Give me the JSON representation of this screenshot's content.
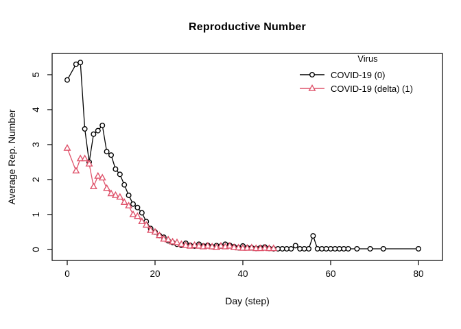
{
  "page": {
    "title": "Reproductive Number"
  },
  "colors": {
    "background": "#ffffff",
    "axis": "#000000",
    "covid_series": "#000000",
    "delta_series": "#DF536B"
  },
  "legend": {
    "title": "Virus",
    "entries": [
      {
        "label": "COVID-19 (0)",
        "marker": "circle",
        "color": "#000000"
      },
      {
        "label": "COVID-19 (delta) (1)",
        "marker": "triangle",
        "color": "#DF536B"
      }
    ]
  },
  "chart_data": {
    "type": "line",
    "title": "Reproductive Number",
    "xlabel": "Day (step)",
    "ylabel": "Average Rep. Number",
    "xlim": [
      -3.4,
      85.5
    ],
    "ylim": [
      -0.31,
      5.6
    ],
    "xticks": [
      0,
      20,
      40,
      60,
      80
    ],
    "yticks": [
      0,
      1,
      2,
      3,
      4,
      5
    ],
    "grid": false,
    "legend_position": "top-right",
    "series": [
      {
        "name": "COVID-19 (0)",
        "color": "#000000",
        "marker": "circle",
        "points": [
          [
            0,
            4.85
          ],
          [
            2,
            5.3
          ],
          [
            3,
            5.35
          ],
          [
            4,
            3.45
          ],
          [
            5,
            2.5
          ],
          [
            6,
            3.3
          ],
          [
            7,
            3.4
          ],
          [
            8,
            3.55
          ],
          [
            9,
            2.8
          ],
          [
            10,
            2.7
          ],
          [
            11,
            2.3
          ],
          [
            12,
            2.15
          ],
          [
            13,
            1.85
          ],
          [
            14,
            1.55
          ],
          [
            15,
            1.3
          ],
          [
            16,
            1.2
          ],
          [
            17,
            1.05
          ],
          [
            18,
            0.8
          ],
          [
            19,
            0.6
          ],
          [
            20,
            0.5
          ],
          [
            21,
            0.4
          ],
          [
            22,
            0.35
          ],
          [
            23,
            0.25
          ],
          [
            24,
            0.2
          ],
          [
            25,
            0.15
          ],
          [
            26,
            0.12
          ],
          [
            27,
            0.18
          ],
          [
            28,
            0.12
          ],
          [
            29,
            0.1
          ],
          [
            30,
            0.15
          ],
          [
            31,
            0.1
          ],
          [
            32,
            0.12
          ],
          [
            33,
            0.08
          ],
          [
            34,
            0.11
          ],
          [
            35,
            0.1
          ],
          [
            36,
            0.15
          ],
          [
            37,
            0.12
          ],
          [
            38,
            0.08
          ],
          [
            39,
            0.05
          ],
          [
            40,
            0.1
          ],
          [
            41,
            0.05
          ],
          [
            42,
            0.05
          ],
          [
            43,
            0.03
          ],
          [
            44,
            0.05
          ],
          [
            45,
            0.07
          ],
          [
            46,
            0.03
          ],
          [
            47,
            0.02
          ],
          [
            48,
            0.02
          ],
          [
            49,
            0.02
          ],
          [
            50,
            0.02
          ],
          [
            51,
            0.02
          ],
          [
            52,
            0.11
          ],
          [
            53,
            0.02
          ],
          [
            54,
            0.02
          ],
          [
            55,
            0.02
          ],
          [
            56,
            0.39
          ],
          [
            57,
            0.02
          ],
          [
            58,
            0.02
          ],
          [
            59,
            0.02
          ],
          [
            60,
            0.02
          ],
          [
            61,
            0.02
          ],
          [
            62,
            0.02
          ],
          [
            63,
            0.02
          ],
          [
            64,
            0.02
          ],
          [
            66,
            0.02
          ],
          [
            69,
            0.02
          ],
          [
            72,
            0.02
          ],
          [
            80,
            0.02
          ]
        ]
      },
      {
        "name": "COVID-19 (delta) (1)",
        "color": "#DF536B",
        "marker": "triangle",
        "points": [
          [
            0,
            2.9
          ],
          [
            2,
            2.25
          ],
          [
            3,
            2.6
          ],
          [
            4,
            2.6
          ],
          [
            5,
            2.45
          ],
          [
            6,
            1.8
          ],
          [
            7,
            2.1
          ],
          [
            8,
            2.05
          ],
          [
            9,
            1.75
          ],
          [
            10,
            1.6
          ],
          [
            11,
            1.55
          ],
          [
            12,
            1.5
          ],
          [
            13,
            1.35
          ],
          [
            14,
            1.25
          ],
          [
            15,
            1.0
          ],
          [
            16,
            0.95
          ],
          [
            17,
            0.8
          ],
          [
            18,
            0.7
          ],
          [
            19,
            0.55
          ],
          [
            20,
            0.5
          ],
          [
            21,
            0.4
          ],
          [
            22,
            0.3
          ],
          [
            23,
            0.28
          ],
          [
            24,
            0.22
          ],
          [
            25,
            0.2
          ],
          [
            26,
            0.15
          ],
          [
            27,
            0.12
          ],
          [
            28,
            0.1
          ],
          [
            29,
            0.12
          ],
          [
            30,
            0.1
          ],
          [
            31,
            0.08
          ],
          [
            32,
            0.1
          ],
          [
            33,
            0.08
          ],
          [
            34,
            0.06
          ],
          [
            35,
            0.1
          ],
          [
            36,
            0.08
          ],
          [
            37,
            0.1
          ],
          [
            38,
            0.06
          ],
          [
            39,
            0.05
          ],
          [
            40,
            0.04
          ],
          [
            41,
            0.04
          ],
          [
            42,
            0.05
          ],
          [
            43,
            0.03
          ],
          [
            44,
            0.03
          ],
          [
            45,
            0.04
          ],
          [
            46,
            0.03
          ],
          [
            47,
            0.03
          ]
        ]
      }
    ]
  }
}
